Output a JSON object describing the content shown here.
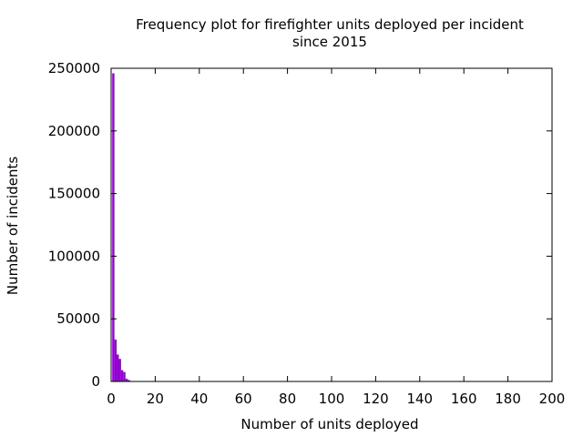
{
  "chart_data": {
    "type": "bar",
    "title": "Frequency plot for firefighter units deployed per incident",
    "subtitle": "since 2015",
    "xlabel": "Number of units deployed",
    "ylabel": "Number of incidents",
    "xlim": [
      0,
      200
    ],
    "ylim": [
      0,
      250000
    ],
    "x_ticks": [
      0,
      20,
      40,
      60,
      80,
      100,
      120,
      140,
      160,
      180,
      200
    ],
    "y_ticks": [
      0,
      50000,
      100000,
      150000,
      200000,
      250000
    ],
    "grid": false,
    "legend": "none",
    "bar_color": "#9400d3",
    "x": [
      1,
      2,
      3,
      4,
      5,
      6,
      7,
      8,
      9,
      10
    ],
    "values": [
      246000,
      33500,
      21500,
      18000,
      9000,
      7500,
      2200,
      1200,
      400,
      150
    ]
  }
}
